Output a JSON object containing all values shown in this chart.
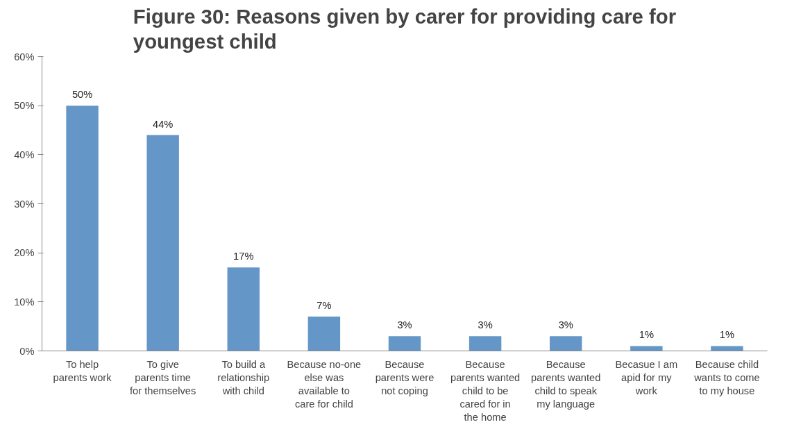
{
  "chart_data": {
    "type": "bar",
    "title": "Figure 30: Reasons given by carer for providing care for youngest child",
    "categories": [
      "To help parents work",
      "To give parents time for themselves",
      "To build a relationship with child",
      "Because no-one else was available to care for child",
      "Because parents were not coping",
      "Because parents wanted child to be cared for in the home",
      "Because parents wanted child to speak my language",
      "Becasue I am apid for my work",
      "Because child wants to come to my house"
    ],
    "values": [
      50,
      44,
      17,
      7,
      3,
      3,
      3,
      1,
      1
    ],
    "value_labels": [
      "50%",
      "44%",
      "17%",
      "7%",
      "3%",
      "3%",
      "3%",
      "1%",
      "1%"
    ],
    "color": "#6497c8",
    "ylim": [
      0,
      60
    ],
    "yticks": [
      {
        "value": 0,
        "label": "0%"
      },
      {
        "value": 10,
        "label": "10%"
      },
      {
        "value": 20,
        "label": "20%"
      },
      {
        "value": 30,
        "label": "30%"
      },
      {
        "value": 40,
        "label": "40%"
      },
      {
        "value": 50,
        "label": "50%"
      },
      {
        "value": 60,
        "label": "60%"
      }
    ],
    "grid": false
  }
}
